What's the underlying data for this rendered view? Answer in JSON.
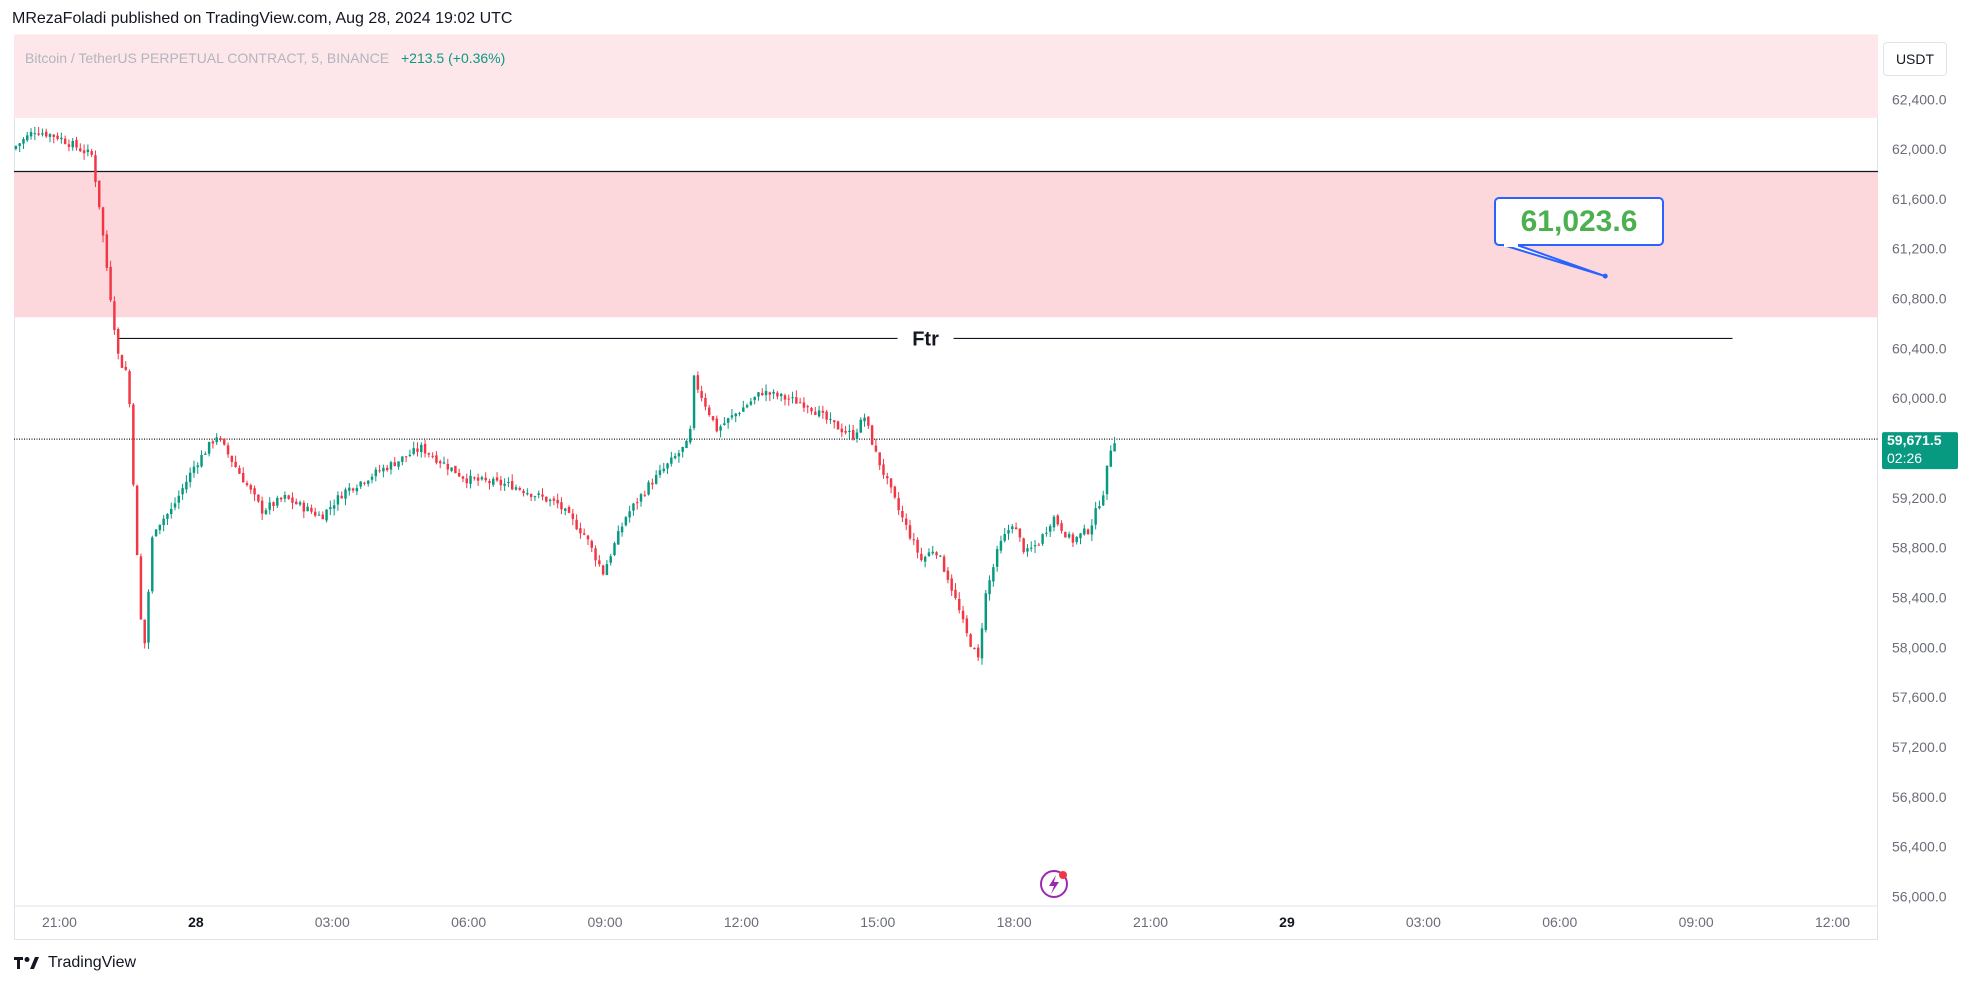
{
  "header": {
    "published_by": "MRezaFoladi published on TradingView.com, Aug 28, 2024 19:02 UTC"
  },
  "symbol": {
    "description": "Bitcoin / TetherUS PERPETUAL CONTRACT, 5, BINANCE",
    "change": "+213.5 (+0.36%)"
  },
  "currency_label": "USDT",
  "footer": {
    "brand": "TradingView"
  },
  "colors": {
    "up": "#089981",
    "down": "#f23645",
    "zone_light": "#fde7ea",
    "zone_strong": "#fcd8dd",
    "callout_border": "#2962ff",
    "callout_text": "#4caf50",
    "price_badge": "#089981",
    "axis_text": "#6a6d78"
  },
  "chart_data": {
    "type": "candlestick",
    "interval_minutes": 5,
    "y_axis": {
      "ylim": [
        55650,
        62900
      ],
      "ticks": [
        "62,400.0",
        "62,000.0",
        "61,600.0",
        "61,200.0",
        "60,800.0",
        "60,400.0",
        "60,000.0",
        "59,200.0",
        "58,800.0",
        "58,400.0",
        "58,000.0",
        "57,600.0",
        "57,200.0",
        "56,800.0",
        "56,400.0",
        "56,000.0"
      ],
      "tick_values": [
        62400,
        62000,
        61600,
        61200,
        60800,
        60400,
        60000,
        59200,
        58800,
        58400,
        58000,
        57600,
        57200,
        56800,
        56400,
        56000
      ]
    },
    "x_axis": {
      "start": "Aug 27 20:00",
      "end": "Aug 29 12:55",
      "ticks": [
        {
          "label": "21:00",
          "hour": 21,
          "bold": false
        },
        {
          "label": "28",
          "hour": 24,
          "bold": true
        },
        {
          "label": "03:00",
          "hour": 27,
          "bold": false
        },
        {
          "label": "06:00",
          "hour": 30,
          "bold": false
        },
        {
          "label": "09:00",
          "hour": 33,
          "bold": false
        },
        {
          "label": "12:00",
          "hour": 36,
          "bold": false
        },
        {
          "label": "15:00",
          "hour": 39,
          "bold": false
        },
        {
          "label": "18:00",
          "hour": 42,
          "bold": false
        },
        {
          "label": "21:00",
          "hour": 45,
          "bold": false
        },
        {
          "label": "29",
          "hour": 48,
          "bold": true
        },
        {
          "label": "03:00",
          "hour": 51,
          "bold": false
        },
        {
          "label": "06:00",
          "hour": 54,
          "bold": false
        },
        {
          "label": "09:00",
          "hour": 57,
          "bold": false
        },
        {
          "label": "12:00",
          "hour": 60,
          "bold": false
        }
      ]
    },
    "price_path": [
      [
        20.0,
        62000
      ],
      [
        20.5,
        62150
      ],
      [
        21.0,
        62100
      ],
      [
        21.4,
        62020
      ],
      [
        21.75,
        61950
      ],
      [
        21.9,
        61600
      ],
      [
        22.1,
        61000
      ],
      [
        22.35,
        60300
      ],
      [
        22.55,
        60200
      ],
      [
        22.8,
        58350
      ],
      [
        22.9,
        57950
      ],
      [
        23.1,
        58950
      ],
      [
        23.5,
        59100
      ],
      [
        24.0,
        59450
      ],
      [
        24.5,
        59700
      ],
      [
        25.0,
        59400
      ],
      [
        25.5,
        59100
      ],
      [
        26.0,
        59200
      ],
      [
        26.8,
        59050
      ],
      [
        27.3,
        59250
      ],
      [
        28.0,
        59400
      ],
      [
        29.0,
        59600
      ],
      [
        30.0,
        59350
      ],
      [
        31.0,
        59300
      ],
      [
        32.0,
        59150
      ],
      [
        32.6,
        58900
      ],
      [
        33.0,
        58600
      ],
      [
        33.5,
        59050
      ],
      [
        34.0,
        59300
      ],
      [
        34.9,
        59650
      ],
      [
        35.0,
        60150
      ],
      [
        35.5,
        59750
      ],
      [
        36.0,
        59900
      ],
      [
        36.5,
        60050
      ],
      [
        37.0,
        60000
      ],
      [
        37.5,
        59950
      ],
      [
        38.0,
        59800
      ],
      [
        38.5,
        59700
      ],
      [
        38.75,
        59850
      ],
      [
        39.0,
        59550
      ],
      [
        39.5,
        59100
      ],
      [
        40.0,
        58700
      ],
      [
        40.3,
        58800
      ],
      [
        40.6,
        58550
      ],
      [
        41.0,
        58100
      ],
      [
        41.25,
        57900
      ],
      [
        41.4,
        58400
      ],
      [
        41.7,
        58800
      ],
      [
        42.0,
        59000
      ],
      [
        42.3,
        58750
      ],
      [
        42.6,
        58850
      ],
      [
        42.9,
        59050
      ],
      [
        43.3,
        58850
      ],
      [
        43.7,
        58950
      ],
      [
        44.0,
        59250
      ],
      [
        44.2,
        59671.5
      ]
    ],
    "zones": [
      {
        "from": 62250,
        "to": 62920,
        "style": "light"
      },
      {
        "from": 60650,
        "to": 61820,
        "style": "strong"
      }
    ],
    "levels": [
      {
        "price": 61820,
        "style": "solid",
        "from_hour": 20.0
      },
      {
        "price": 60480,
        "style": "solid",
        "from_hour": 22.3,
        "to_hour": 57.8,
        "label": "Ftr"
      },
      {
        "price": 59671.5,
        "style": "dotted",
        "from_hour": 20.0
      }
    ],
    "callout": {
      "text": "61,023.6",
      "price": 61023.6,
      "anchor_hour": 55.0,
      "anchor_price": 60980
    },
    "last_price": {
      "price_text": "59,671.5",
      "countdown": "02:26",
      "price": 59671.5
    }
  }
}
